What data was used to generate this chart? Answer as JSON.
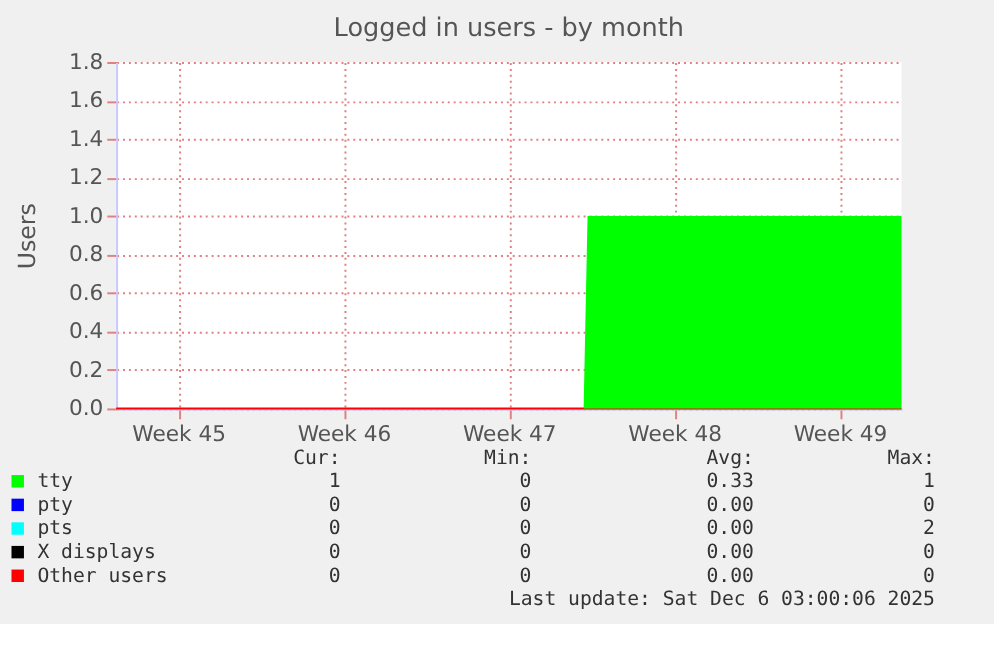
{
  "chart_data": {
    "type": "area",
    "title": "Logged in users - by month",
    "ylabel": "Users",
    "xlim": [
      "2025-11-02T21:00",
      "2025-12-06T03:00"
    ],
    "xticks": [
      {
        "value": "2025-11-05T12:00",
        "label": "Week 45"
      },
      {
        "value": "2025-11-12T12:00",
        "label": "Week 46"
      },
      {
        "value": "2025-11-19T12:00",
        "label": "Week 47"
      },
      {
        "value": "2025-11-26T12:00",
        "label": "Week 48"
      },
      {
        "value": "2025-12-03T12:00",
        "label": "Week 49"
      }
    ],
    "ylim": [
      0,
      1.8
    ],
    "yticks": [
      {
        "value": 0,
        "label": "0.0"
      },
      0.2,
      0.4,
      0.6,
      0.8,
      {
        "value": 1,
        "label": "1.0"
      },
      1.2,
      1.4,
      1.6,
      1.8
    ],
    "grid": true,
    "legend": "bottom",
    "series": [
      {
        "name": "tty",
        "color": "#00ff00",
        "x": [
          "2025-11-02T21:00",
          "2025-11-22T16:00",
          "2025-11-22T20:00",
          "2025-12-06T03:00"
        ],
        "values": [
          0,
          0,
          1,
          1
        ]
      },
      {
        "name": "pty",
        "type": "line",
        "color": "#0000ff"
      },
      {
        "name": "pts",
        "type": "line",
        "color": "#00ffff"
      },
      {
        "name": "X displays",
        "type": "line",
        "color": "#000000"
      },
      {
        "name": "Other users",
        "type": "line",
        "color": "#ff0000",
        "x": [
          "2025-11-02T21:00",
          "2025-12-06T03:00"
        ],
        "values": [
          0,
          0
        ]
      }
    ],
    "annotations": [
      "Cur:",
      "Min:",
      "Avg:",
      "Max:",
      "1",
      "0",
      "0.33",
      "1",
      "0",
      "0",
      "0.00",
      "0",
      "0",
      "0",
      "0.00",
      "2",
      "0",
      "0",
      "0.00",
      "0",
      "0",
      "0",
      "0.00",
      "0",
      "Last update: Sat Dec  6 03:00:06 2025"
    ]
  }
}
